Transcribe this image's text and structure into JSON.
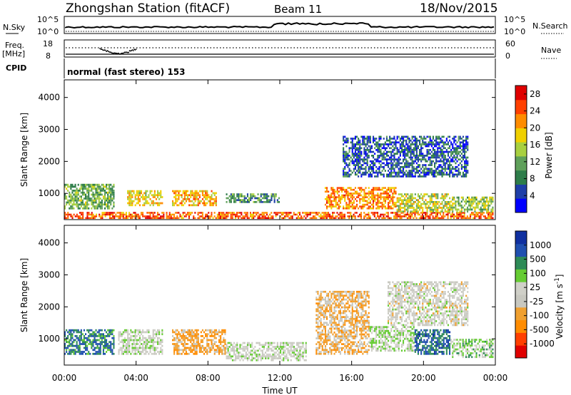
{
  "header": {
    "title": "Zhongshan Station (fitACF)",
    "beam": "Beam 11",
    "date": "18/Nov/2015"
  },
  "status_panels": {
    "nsky": {
      "label": "N.Sky",
      "ticks": [
        "10^5",
        "10^0"
      ]
    },
    "nsearch": {
      "label": "N.Search",
      "ticks": [
        "10^5",
        "10^0"
      ]
    },
    "freq": {
      "label_top": "Freq.",
      "label_unit": "[MHz]",
      "ticks": [
        "18",
        "8"
      ]
    },
    "nave": {
      "label": "Nave",
      "ticks": [
        "60",
        "0"
      ]
    },
    "cpid": {
      "label": "CPID",
      "value": "normal (fast stereo) 153"
    }
  },
  "colors": {
    "power": [
      "#0000ff",
      "#1f3fa8",
      "#2e7d4a",
      "#5fa05a",
      "#a8d040",
      "#f0d000",
      "#ff8c00",
      "#ff4000",
      "#e00000"
    ],
    "velocity": [
      "#e00000",
      "#ff4000",
      "#ff8c00",
      "#f0a030",
      "#c8c8c0",
      "#d0d0c8",
      "#66cc33",
      "#2e8b57",
      "#2050b0",
      "#1030a0"
    ]
  },
  "chart_data": [
    {
      "type": "heatmap",
      "name": "power",
      "ylabel": "Slant Range [km]",
      "xlabel": "",
      "x_ticks": [
        "00:00",
        "04:00",
        "08:00",
        "12:00",
        "16:00",
        "20:00",
        "00:00"
      ],
      "y_ticks": [
        "1000",
        "2000",
        "3000",
        "4000"
      ],
      "ylim": [
        180,
        4550
      ],
      "xlim_hours": [
        0,
        24
      ],
      "colorbar": {
        "label": "Power [dB]",
        "ticks": [
          "4",
          "8",
          "12",
          "16",
          "20",
          "24",
          "28"
        ],
        "range": [
          0,
          30
        ]
      },
      "echo_regions": [
        {
          "t": [
            0.0,
            23.9
          ],
          "r": [
            200,
            420
          ],
          "value": 24
        },
        {
          "t": [
            0.0,
            2.8
          ],
          "r": [
            500,
            1300
          ],
          "value": 12
        },
        {
          "t": [
            3.5,
            5.5
          ],
          "r": [
            600,
            1100
          ],
          "value": 18
        },
        {
          "t": [
            6.0,
            8.5
          ],
          "r": [
            600,
            1100
          ],
          "value": 20
        },
        {
          "t": [
            9.0,
            12.0
          ],
          "r": [
            700,
            1000
          ],
          "value": 10
        },
        {
          "t": [
            14.5,
            18.5
          ],
          "r": [
            500,
            1200
          ],
          "value": 22
        },
        {
          "t": [
            18.5,
            21.5
          ],
          "r": [
            400,
            1000
          ],
          "value": 16
        },
        {
          "t": [
            21.5,
            23.9
          ],
          "r": [
            400,
            900
          ],
          "value": 14
        },
        {
          "t": [
            15.5,
            22.5
          ],
          "r": [
            1500,
            2800
          ],
          "value": 6
        }
      ]
    },
    {
      "type": "heatmap",
      "name": "velocity",
      "ylabel": "Slant Range [km]",
      "xlabel": "Time UT",
      "x_ticks": [
        "00:00",
        "04:00",
        "08:00",
        "12:00",
        "16:00",
        "20:00",
        "00:00"
      ],
      "y_ticks": [
        "1000",
        "2000",
        "3000",
        "4000"
      ],
      "ylim": [
        180,
        4550
      ],
      "xlim_hours": [
        0,
        24
      ],
      "colorbar": {
        "label": "Velocity [m s^-1]",
        "ticks": [
          "1000",
          "500",
          "100",
          "25",
          "-25",
          "-100",
          "-500",
          "-1000"
        ],
        "range": [
          -1250,
          1250
        ]
      },
      "echo_regions": [
        {
          "t": [
            0.0,
            2.8
          ],
          "r": [
            500,
            1300
          ],
          "value": 700
        },
        {
          "t": [
            3.0,
            5.5
          ],
          "r": [
            500,
            1300
          ],
          "value": 120
        },
        {
          "t": [
            6.0,
            9.0
          ],
          "r": [
            500,
            1300
          ],
          "value": -400
        },
        {
          "t": [
            9.0,
            13.5
          ],
          "r": [
            300,
            900
          ],
          "value": 80
        },
        {
          "t": [
            14.0,
            17.0
          ],
          "r": [
            500,
            2500
          ],
          "value": -300
        },
        {
          "t": [
            17.0,
            19.5
          ],
          "r": [
            600,
            1400
          ],
          "value": 200
        },
        {
          "t": [
            19.5,
            21.5
          ],
          "r": [
            500,
            1300
          ],
          "value": 800
        },
        {
          "t": [
            18.0,
            22.5
          ],
          "r": [
            1400,
            2800
          ],
          "value": 0
        },
        {
          "t": [
            21.5,
            23.9
          ],
          "r": [
            400,
            1000
          ],
          "value": 300
        }
      ]
    }
  ]
}
